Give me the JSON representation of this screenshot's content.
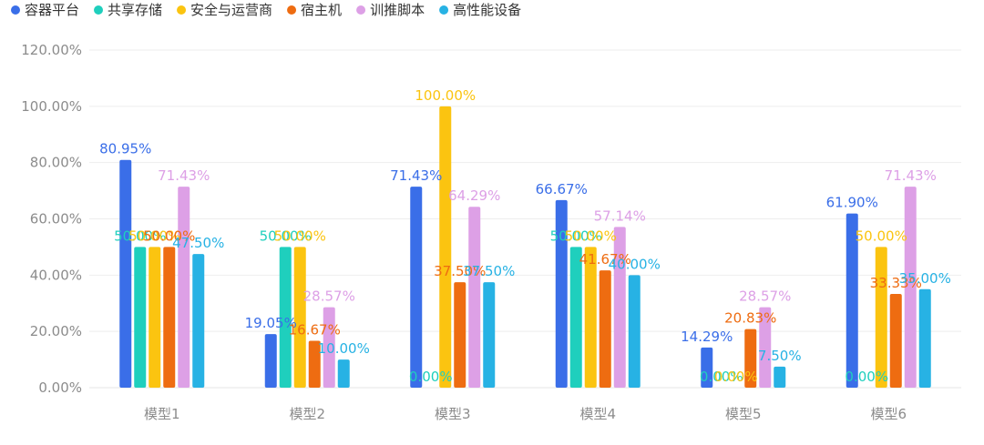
{
  "chart_data": {
    "type": "bar",
    "categories": [
      "模型1",
      "模型2",
      "模型3",
      "模型4",
      "模型5",
      "模型6"
    ],
    "series": [
      {
        "name": "容器平台",
        "color": "#3a6ee8",
        "values": [
          80.95,
          19.05,
          71.43,
          66.67,
          14.29,
          61.9
        ],
        "labels": [
          "80.95%",
          "19.05%",
          "71.43%",
          "66.67%",
          "14.29%",
          "61.90%"
        ]
      },
      {
        "name": "共享存储",
        "color": "#1fcfbd",
        "values": [
          50.0,
          50.0,
          0.0,
          50.0,
          0.0,
          0.0
        ],
        "labels": [
          "50.00%",
          "50.00%",
          "0.00%",
          "50.00%",
          "0.00%",
          "0.00%"
        ]
      },
      {
        "name": "安全与运营商",
        "color": "#fbc410",
        "values": [
          50.0,
          50.0,
          100.0,
          50.0,
          0.0,
          50.0
        ],
        "labels": [
          "50.00%",
          "50.00%",
          "100.00%",
          "50.00%",
          "0.00%",
          "50.00%"
        ]
      },
      {
        "name": "宿主机",
        "color": "#ee6c11",
        "values": [
          50.0,
          16.67,
          37.5,
          41.67,
          20.83,
          33.33
        ],
        "labels": [
          "50.00%",
          "16.67%",
          "37.50%",
          "41.67%",
          "20.83%",
          "33.33%"
        ]
      },
      {
        "name": "训推脚本",
        "color": "#dda0e6",
        "values": [
          71.43,
          28.57,
          64.29,
          57.14,
          28.57,
          71.43
        ],
        "labels": [
          "71.43%",
          "28.57%",
          "64.29%",
          "57.14%",
          "28.57%",
          "71.43%"
        ]
      },
      {
        "name": "高性能设备",
        "color": "#27b2e4",
        "values": [
          47.5,
          10.0,
          37.5,
          40.0,
          7.5,
          35.0
        ],
        "labels": [
          "47.50%",
          "10.00%",
          "37.50%",
          "40.00%",
          "7.50%",
          "35.00%"
        ]
      }
    ],
    "y_ticks": [
      "0.00%",
      "20.00%",
      "40.00%",
      "60.00%",
      "80.00%",
      "100.00%",
      "120.00%"
    ],
    "ylim": [
      0,
      120
    ],
    "grid": true,
    "legend_position": "top-left",
    "title": "",
    "xlabel": "",
    "ylabel": ""
  }
}
